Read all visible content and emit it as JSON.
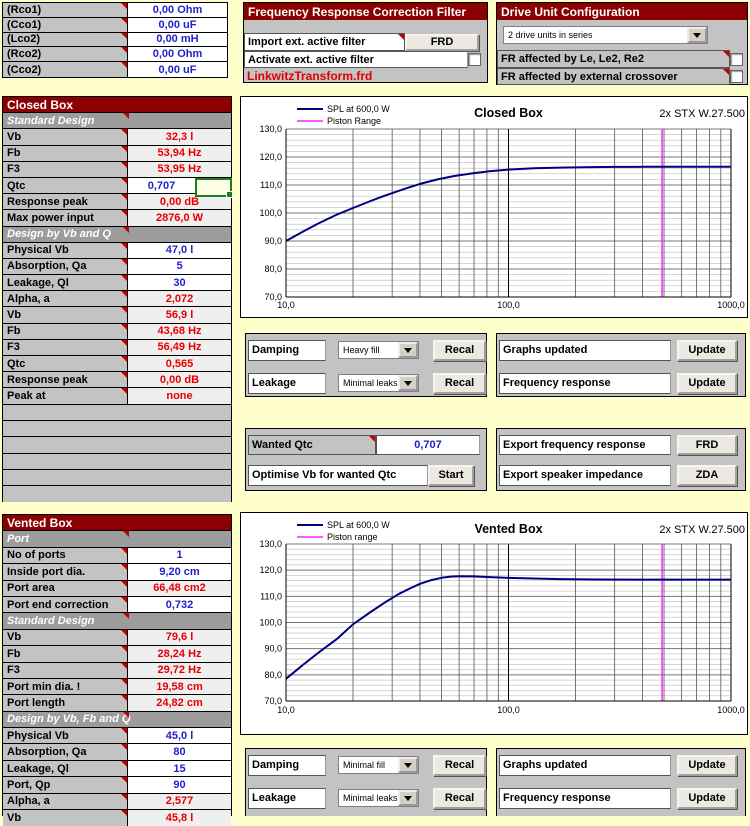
{
  "colors": {
    "page_bg": "#FFFFCC",
    "header_red": "#8B0000",
    "cell_gray": "#C3C3C3",
    "sub_gray": "#9C9C9C",
    "value_blue": "#2121CC",
    "value_red": "#E80000",
    "curve_navy": "#000080",
    "piston_magenta": "#FF22FF",
    "selection_green": "#1B7E1B"
  },
  "xo_table": {
    "rows": [
      {
        "label": "(Rco1)",
        "value": "0,00 Ohm"
      },
      {
        "label": "(Cco1)",
        "value": "0,00 uF"
      },
      {
        "label": "(Lco2)",
        "value": "0,00 mH"
      },
      {
        "label": "(Rco2)",
        "value": "0,00 Ohm"
      },
      {
        "label": "(Cco2)",
        "value": "0,00 uF"
      }
    ]
  },
  "filter_panel": {
    "title": "Frequency Response Correction Filter",
    "import_label": "Import ext. active filter",
    "import_button": "FRD",
    "activate_label": "Activate ext. active filter",
    "file_link": "LinkwitzTransform.frd"
  },
  "drive_panel": {
    "title": "Drive Unit Configuration",
    "dropdown_value": "2 drive units in series",
    "check1_label": "FR affected by Le, Le2, Re2",
    "check2_label": "FR affected by external crossover"
  },
  "closed_box": {
    "title": "Closed Box",
    "rows": [
      {
        "t": "sub",
        "label": "Standard Design"
      },
      {
        "t": "d",
        "label": "Vb",
        "value": "32,3 l",
        "c": "red"
      },
      {
        "t": "d",
        "label": "Fb",
        "value": "53,94 Hz",
        "c": "red"
      },
      {
        "t": "d",
        "label": "F3",
        "value": "53,95 Hz",
        "c": "red"
      },
      {
        "t": "d",
        "label": "Qtc",
        "value": "0,707",
        "c": "blue",
        "sel": true
      },
      {
        "t": "d",
        "label": "Response peak",
        "value": "0,00 dB",
        "c": "red"
      },
      {
        "t": "d",
        "label": "Max power input",
        "value": "2876,0 W",
        "c": "red"
      },
      {
        "t": "sub",
        "label": "Design by Vb and Q"
      },
      {
        "t": "d",
        "label": "Physical Vb",
        "value": "47,0 l",
        "c": "blue"
      },
      {
        "t": "d",
        "label": "Absorption, Qa",
        "value": "5",
        "c": "blue"
      },
      {
        "t": "d",
        "label": "Leakage, Ql",
        "value": "30",
        "c": "blue"
      },
      {
        "t": "d",
        "label": "Alpha, a",
        "value": "2,072",
        "c": "red"
      },
      {
        "t": "d",
        "label": "Vb",
        "value": "56,9 l",
        "c": "red"
      },
      {
        "t": "d",
        "label": "Fb",
        "value": "43,68 Hz",
        "c": "red"
      },
      {
        "t": "d",
        "label": "F3",
        "value": "56,49 Hz",
        "c": "red"
      },
      {
        "t": "d",
        "label": "Qtc",
        "value": "0,565",
        "c": "red"
      },
      {
        "t": "d",
        "label": "Response peak",
        "value": "0,00 dB",
        "c": "red"
      },
      {
        "t": "d",
        "label": "Peak at",
        "value": "none",
        "c": "red"
      }
    ],
    "empty_rows": 6
  },
  "vented_box": {
    "title": "Vented Box",
    "rows": [
      {
        "t": "sub",
        "label": "Port"
      },
      {
        "t": "d",
        "label": "No of ports",
        "value": "1",
        "c": "blue"
      },
      {
        "t": "d",
        "label": "Inside port dia.",
        "value": "9,20 cm",
        "c": "blue"
      },
      {
        "t": "d",
        "label": "Port area",
        "value": "66,48 cm2",
        "c": "red"
      },
      {
        "t": "d",
        "label": "Port end correction",
        "value": "0,732",
        "c": "blue"
      },
      {
        "t": "sub",
        "label": "Standard Design"
      },
      {
        "t": "d",
        "label": "Vb",
        "value": "79,6 l",
        "c": "red"
      },
      {
        "t": "d",
        "label": "Fb",
        "value": "28,24 Hz",
        "c": "red"
      },
      {
        "t": "d",
        "label": "F3",
        "value": "29,72 Hz",
        "c": "red"
      },
      {
        "t": "d",
        "label": "Port min dia. !",
        "value": "19,58 cm",
        "c": "red"
      },
      {
        "t": "d",
        "label": "Port length",
        "value": "24,82 cm",
        "c": "red"
      },
      {
        "t": "sub",
        "label": "Design by Vb, Fb and Q"
      },
      {
        "t": "d",
        "label": "Physical Vb",
        "value": "45,0 l",
        "c": "blue"
      },
      {
        "t": "d",
        "label": "Absorption, Qa",
        "value": "80",
        "c": "blue"
      },
      {
        "t": "d",
        "label": "Leakage, Ql",
        "value": "15",
        "c": "blue"
      },
      {
        "t": "d",
        "label": "Port, Qp",
        "value": "90",
        "c": "blue"
      },
      {
        "t": "d",
        "label": "Alpha, a",
        "value": "2,577",
        "c": "red"
      },
      {
        "t": "d",
        "label": "Vb",
        "value": "45,8 l",
        "c": "red"
      }
    ]
  },
  "closed_controls": {
    "damping_label": "Damping",
    "damping_value": "Heavy fill",
    "leakage_label": "Leakage",
    "leakage_value": "Minimal leaks",
    "recal_label": "Recal"
  },
  "closed_updates": {
    "graphs_label": "Graphs updated",
    "freq_label": "Frequency response",
    "update_label": "Update"
  },
  "wanted_qtc": {
    "label": "Wanted Qtc",
    "value": "0,707",
    "optimise_label": "Optimise Vb for wanted Qtc",
    "start_label": "Start"
  },
  "exports": {
    "freq_label": "Export frequency response",
    "freq_btn": "FRD",
    "imp_label": "Export speaker impedance",
    "imp_btn": "ZDA"
  },
  "vented_controls": {
    "damping_label": "Damping",
    "damping_value": "Minimal fill",
    "leakage_label": "Leakage",
    "leakage_value": "Minimal leaks",
    "recal_label": "Recal"
  },
  "vented_updates": {
    "graphs_label": "Graphs updated",
    "freq_label": "Frequency response",
    "update_label": "Update"
  },
  "chart_data": [
    {
      "type": "line",
      "title": "Closed Box",
      "model": "2x STX W.27.500",
      "x_scale": "log",
      "xlim": [
        10,
        1000
      ],
      "ylim": [
        70,
        130
      ],
      "ytick_major": 10,
      "ytick_minor": 2,
      "xtick_labels": [
        "10,0",
        "100,0",
        "1000,0"
      ],
      "legend": [
        {
          "label": "SPL at 600,0 W",
          "color": "#000080"
        },
        {
          "label": "Piston Range",
          "color": "#FF22FF"
        }
      ],
      "piston_range_hz": 490,
      "series": [
        {
          "name": "SPL at 600,0 W",
          "color": "#000080",
          "x": [
            10,
            12,
            14,
            17,
            20,
            24,
            28,
            34,
            40,
            48,
            57,
            68,
            82,
            100,
            130,
            170,
            220,
            300,
            420,
            600,
            1000
          ],
          "y": [
            90,
            93.5,
            96.3,
            99.5,
            101.8,
            104.3,
            106.3,
            108.6,
            110.4,
            112.0,
            113.2,
            114.1,
            114.9,
            115.5,
            116.0,
            116.2,
            116.35,
            116.45,
            116.5,
            116.5,
            116.5
          ]
        }
      ]
    },
    {
      "type": "line",
      "title": "Vented Box",
      "model": "2x STX W.27.500",
      "x_scale": "log",
      "xlim": [
        10,
        1000
      ],
      "ylim": [
        70,
        130
      ],
      "ytick_major": 10,
      "ytick_minor": 2,
      "xtick_labels": [
        "10,0",
        "100,0",
        "1000,0"
      ],
      "legend": [
        {
          "label": "SPL at 600,0 W",
          "color": "#000080"
        },
        {
          "label": "Piston range",
          "color": "#FF22FF"
        }
      ],
      "piston_range_hz": 490,
      "series": [
        {
          "name": "SPL at 600,0 W",
          "color": "#000080",
          "x": [
            10,
            12,
            14,
            17,
            20,
            24,
            28,
            32,
            36,
            40,
            45,
            50,
            55,
            60,
            70,
            80,
            100,
            130,
            170,
            250,
            400,
            700,
            1000
          ],
          "y": [
            78.5,
            84,
            88.5,
            93.8,
            99.3,
            104,
            107.8,
            110.8,
            113,
            114.8,
            116.2,
            117.1,
            117.55,
            117.7,
            117.6,
            117.4,
            117.05,
            116.8,
            116.6,
            116.45,
            116.4,
            116.4,
            116.4
          ]
        }
      ]
    }
  ]
}
